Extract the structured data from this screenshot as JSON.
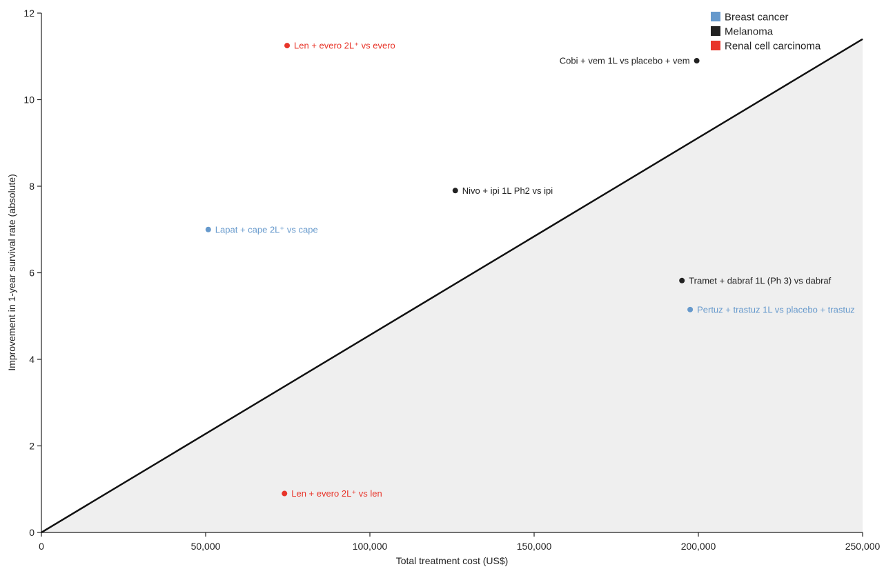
{
  "chart_data": {
    "type": "scatter",
    "xlabel": "Total treatment cost (US$)",
    "ylabel": "Improvement in 1-year survival rate (absolute)",
    "xlim": [
      0,
      250000
    ],
    "ylim": [
      0,
      12
    ],
    "x_ticks": [
      {
        "value": 0,
        "label": "0"
      },
      {
        "value": 50000,
        "label": "50,000"
      },
      {
        "value": 100000,
        "label": "100,000"
      },
      {
        "value": 150000,
        "label": "150,000"
      },
      {
        "value": 200000,
        "label": "200,000"
      },
      {
        "value": 250000,
        "label": "250,000"
      }
    ],
    "y_ticks": [
      {
        "value": 0,
        "label": "0"
      },
      {
        "value": 2,
        "label": "2"
      },
      {
        "value": 4,
        "label": "4"
      },
      {
        "value": 6,
        "label": "6"
      },
      {
        "value": 8,
        "label": "8"
      },
      {
        "value": 10,
        "label": "10"
      },
      {
        "value": 12,
        "label": "12"
      }
    ],
    "threshold_line": {
      "x": [
        0,
        250000
      ],
      "y": [
        0,
        11.4
      ]
    },
    "shaded_region": "below-threshold-line",
    "grid": false,
    "legend_position": "top-right",
    "legend": [
      {
        "name": "Breast cancer",
        "color": "#6699CC"
      },
      {
        "name": "Melanoma",
        "color": "#222222"
      },
      {
        "name": "Renal cell carcinoma",
        "color": "#E8352A"
      }
    ],
    "points": [
      {
        "x": 74800,
        "y": 11.25,
        "group": "Renal cell carcinoma",
        "label": "Len + evero 2L⁺ vs evero",
        "label_side": "right"
      },
      {
        "x": 199500,
        "y": 10.9,
        "group": "Melanoma",
        "label": "Cobi + vem 1L vs placebo + vem",
        "label_side": "left"
      },
      {
        "x": 126000,
        "y": 7.9,
        "group": "Melanoma",
        "label": "Nivo + ipi 1L Ph2 vs ipi",
        "label_side": "right"
      },
      {
        "x": 50800,
        "y": 7.0,
        "group": "Breast cancer",
        "label": "Lapat + cape 2L⁺ vs cape",
        "label_side": "right"
      },
      {
        "x": 195000,
        "y": 5.82,
        "group": "Melanoma",
        "label": "Tramet + dabraf 1L (Ph 3) vs dabraf",
        "label_side": "right"
      },
      {
        "x": 197500,
        "y": 5.15,
        "group": "Breast cancer",
        "label": "Pertuz + trastuz 1L vs placebo + trastuz",
        "label_side": "right"
      },
      {
        "x": 74000,
        "y": 0.9,
        "group": "Renal cell carcinoma",
        "label": "Len + evero 2L⁺ vs len",
        "label_side": "right"
      }
    ]
  }
}
